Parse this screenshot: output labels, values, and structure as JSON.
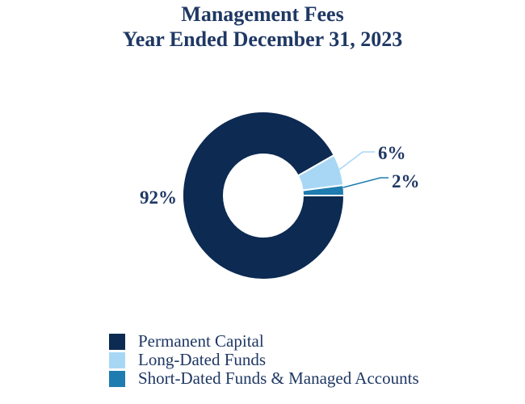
{
  "title": {
    "line1": "Management Fees",
    "line2": "Year Ended December 31, 2023"
  },
  "colors": {
    "background": "#ffffff",
    "text_navy": "#1f3864",
    "slice_navy": "#0c2a52",
    "slice_light_blue": "#a8d7f5",
    "slice_medium_blue": "#1e7cb0",
    "slice_separator": "#ffffff"
  },
  "chart_data": {
    "type": "pie",
    "variant": "donut",
    "title": "Management Fees",
    "subtitle": "Year Ended December 31, 2023",
    "categories": [
      "Permanent Capital",
      "Long-Dated Funds",
      "Short-Dated Funds & Managed Accounts"
    ],
    "values": [
      92,
      6,
      2
    ],
    "unit": "%",
    "data_labels": [
      "92%",
      "6%",
      "2%"
    ],
    "slice_colors": [
      "#0c2a52",
      "#a8d7f5",
      "#1e7cb0"
    ],
    "legend_position": "bottom-left",
    "donut_hole_ratio": 0.49,
    "start_angle": "3 o'clock",
    "direction": "counterclockwise, smallest slice first"
  },
  "legend": {
    "items": [
      {
        "label": "Permanent Capital",
        "color": "#0c2a52"
      },
      {
        "label": "Long-Dated Funds",
        "color": "#a8d7f5"
      },
      {
        "label": "Short-Dated Funds & Managed Accounts",
        "color": "#1e7cb0"
      }
    ]
  }
}
